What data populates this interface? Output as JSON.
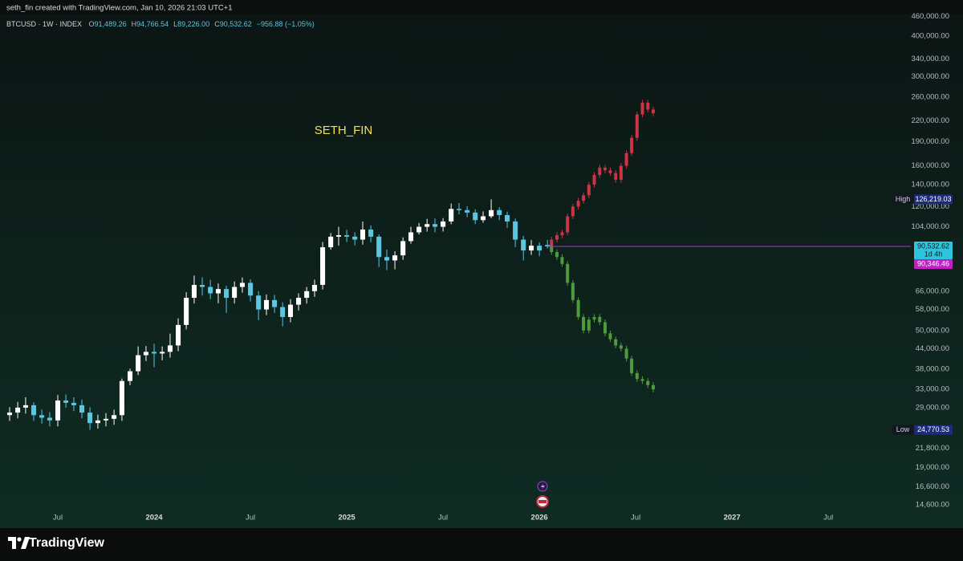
{
  "header": {
    "watermark_text": "seth_fin created with TradingView.com, Jan 10, 2026 21:03 UTC+1",
    "symbol": "BTCUSD · 1W · INDEX",
    "ohlc": [
      {
        "key": "O",
        "text": "91,489.26"
      },
      {
        "key": "H",
        "text": "94,766.54"
      },
      {
        "key": "L",
        "text": "89,226.00"
      },
      {
        "key": "C",
        "text": "90,532.62"
      }
    ],
    "change": "−956.88 (−1.05%)"
  },
  "footer": {
    "brand": "TradingView"
  },
  "chart_data": {
    "type": "candlestick",
    "log_scale": true,
    "grid": false,
    "annotation": "SETH_FIN",
    "annotation_color": "#f3e04e",
    "xlim": [
      2023.2,
      2027.92
    ],
    "xticks": [
      {
        "value": 2023.5,
        "label": "Jul"
      },
      2024,
      {
        "value": 2024.5,
        "label": "Jul"
      },
      2025,
      {
        "value": 2025.5,
        "label": "Jul"
      },
      2026,
      {
        "value": 2026.5,
        "label": "Jul"
      },
      2027,
      {
        "value": 2027.5,
        "label": "Jul"
      }
    ],
    "ylim": [
      12960,
      516000
    ],
    "yticks": [
      {
        "value": 460000,
        "label": "460,000.00"
      },
      {
        "value": 400000,
        "label": "400,000.00"
      },
      {
        "value": 340000,
        "label": "340,000.00"
      },
      {
        "value": 300000,
        "label": "300,000.00"
      },
      {
        "value": 260000,
        "label": "260,000.00"
      },
      {
        "value": 220000,
        "label": "220,000.00"
      },
      {
        "value": 190000,
        "label": "190,000.00"
      },
      {
        "value": 160000,
        "label": "160,000.00"
      },
      {
        "value": 140000,
        "label": "140,000.00"
      },
      {
        "value": 120000,
        "label": "120,000.00"
      },
      {
        "value": 104000,
        "label": "104,000.00"
      },
      {
        "value": 66000,
        "label": "66,000.00"
      },
      {
        "value": 58000,
        "label": "58,000.00"
      },
      {
        "value": 50000,
        "label": "50,000.00"
      },
      {
        "value": 44000,
        "label": "44,000.00"
      },
      {
        "value": 38000,
        "label": "38,000.00"
      },
      {
        "value": 33000,
        "label": "33,000.00"
      },
      {
        "value": 29000,
        "label": "29,000.00"
      },
      {
        "value": 21800,
        "label": "21,800.00"
      },
      {
        "value": 19000,
        "label": "19,000.00"
      },
      {
        "value": 16600,
        "label": "16,600.00"
      },
      {
        "value": 14600,
        "label": "14,600.00"
      }
    ],
    "series": [
      {
        "up_color": "#ffffff",
        "down_color": "#5cc6e0",
        "x": [
          2023.25,
          2023.292,
          2023.333,
          2023.375,
          2023.417,
          2023.458,
          2023.5,
          2023.542,
          2023.583,
          2023.625,
          2023.667,
          2023.708,
          2023.75,
          2023.792,
          2023.833,
          2023.875,
          2023.917,
          2023.958,
          2024,
          2024.042,
          2024.083,
          2024.125,
          2024.167,
          2024.208,
          2024.25,
          2024.292,
          2024.333,
          2024.375,
          2024.417,
          2024.458,
          2024.5,
          2024.542,
          2024.583,
          2024.625,
          2024.667,
          2024.708,
          2024.75,
          2024.792,
          2024.833,
          2024.875,
          2024.917,
          2024.958,
          2025,
          2025.042,
          2025.083,
          2025.125,
          2025.167,
          2025.208,
          2025.25,
          2025.292,
          2025.333,
          2025.375,
          2025.417,
          2025.458,
          2025.5,
          2025.542,
          2025.583,
          2025.625,
          2025.667,
          2025.708,
          2025.75,
          2025.792,
          2025.833,
          2025.875,
          2025.917,
          2025.958,
          2026,
          2026.042
        ],
        "open": [
          27500,
          28000,
          29000,
          29500,
          27500,
          27000,
          26500,
          30500,
          30000,
          29500,
          28000,
          26000,
          26500,
          26800,
          27500,
          35000,
          37500,
          42000,
          43000,
          42500,
          43000,
          45000,
          52000,
          63000,
          69000,
          68000,
          65000,
          67000,
          63000,
          68000,
          70000,
          64000,
          58000,
          62000,
          59000,
          55000,
          60000,
          63000,
          66000,
          69000,
          90000,
          97000,
          98000,
          97000,
          95000,
          102000,
          97000,
          84000,
          82000,
          85000,
          94000,
          100000,
          104000,
          106000,
          104000,
          108000,
          118000,
          117000,
          115000,
          109000,
          112000,
          117000,
          113000,
          108000,
          95000,
          88000,
          91000,
          91489.26
        ],
        "high": [
          29100,
          30200,
          31200,
          30100,
          28600,
          28100,
          31700,
          31800,
          31200,
          30700,
          29100,
          27600,
          27900,
          28600,
          35600,
          38200,
          44700,
          44800,
          45500,
          44700,
          48900,
          54500,
          65500,
          73700,
          72800,
          71500,
          69700,
          68600,
          70700,
          72700,
          71800,
          66000,
          64500,
          64300,
          61000,
          62400,
          65000,
          68000,
          71600,
          93400,
          99500,
          104000,
          101800,
          100000,
          108000,
          105000,
          98600,
          88500,
          87500,
          96500,
          104000,
          106800,
          110000,
          110300,
          110600,
          122600,
          123000,
          120300,
          117700,
          116000,
          126219,
          119500,
          115800,
          110200,
          97500,
          94700,
          93100,
          94766.54
        ],
        "low": [
          26400,
          26900,
          27800,
          26400,
          25900,
          25400,
          25400,
          29000,
          28300,
          26900,
          24800,
          25000,
          25400,
          25700,
          26400,
          34000,
          36500,
          40300,
          38600,
          40500,
          41300,
          43200,
          50400,
          60500,
          64000,
          62400,
          60600,
          56600,
          60500,
          65300,
          61400,
          53800,
          55700,
          56600,
          51500,
          53000,
          57600,
          60500,
          63400,
          66800,
          88500,
          91000,
          93300,
          91200,
          91700,
          93100,
          78300,
          76600,
          77000,
          82400,
          92300,
          98500,
          100500,
          100000,
          100600,
          105900,
          113500,
          111300,
          106000,
          107000,
          110500,
          109000,
          103300,
          90100,
          82000,
          85300,
          84500,
          89226
        ],
        "close": [
          28000,
          29000,
          29500,
          27500,
          27000,
          26500,
          30500,
          30000,
          29500,
          28000,
          26000,
          26500,
          26800,
          27500,
          35000,
          37500,
          42000,
          43000,
          42500,
          43000,
          45000,
          52000,
          63000,
          69000,
          68000,
          65000,
          67000,
          63000,
          68000,
          70000,
          64000,
          58000,
          62000,
          59000,
          55000,
          60000,
          63000,
          66000,
          69000,
          90000,
          97000,
          98000,
          97000,
          95000,
          102000,
          97000,
          84000,
          82000,
          85000,
          94000,
          100000,
          104000,
          106000,
          104000,
          108000,
          118000,
          117000,
          115000,
          109000,
          112000,
          117000,
          113000,
          108000,
          95000,
          88000,
          91000,
          88000,
          90532.62
        ]
      },
      {
        "color": "#cc3344",
        "x": [
          2026.063,
          2026.091,
          2026.118,
          2026.146,
          2026.174,
          2026.202,
          2026.229,
          2026.257,
          2026.285,
          2026.313,
          2026.341,
          2026.368,
          2026.396,
          2026.424,
          2026.452,
          2026.479,
          2026.507,
          2026.535,
          2026.563,
          2026.591
        ],
        "open": [
          90500,
          95000,
          98000,
          100000,
          112000,
          120000,
          125000,
          130000,
          140000,
          150000,
          158000,
          155000,
          152000,
          145000,
          160000,
          175000,
          195000,
          230000,
          250000,
          238000
        ],
        "high": [
          96900,
          100000,
          102000,
          114200,
          122400,
          127500,
          132600,
          142800,
          153000,
          161200,
          161200,
          158100,
          155000,
          163200,
          178500,
          198900,
          234600,
          255000,
          255000,
          242800
        ],
        "low": [
          88700,
          93100,
          96000,
          98000,
          109800,
          117600,
          122500,
          127400,
          137200,
          147000,
          151900,
          149000,
          142100,
          142100,
          156800,
          171500,
          191100,
          225400,
          233200,
          227400
        ],
        "close": [
          95000,
          98000,
          100000,
          112000,
          120000,
          125000,
          130000,
          140000,
          150000,
          158000,
          155000,
          152000,
          145000,
          160000,
          175000,
          195000,
          230000,
          250000,
          238000,
          232000
        ]
      },
      {
        "color": "#4f9a3c",
        "x": [
          2026.063,
          2026.091,
          2026.118,
          2026.146,
          2026.174,
          2026.202,
          2026.229,
          2026.257,
          2026.285,
          2026.313,
          2026.341,
          2026.368,
          2026.396,
          2026.424,
          2026.452,
          2026.479,
          2026.507,
          2026.535,
          2026.563,
          2026.591
        ],
        "open": [
          90500,
          87000,
          84000,
          80000,
          70000,
          62000,
          55000,
          50000,
          54000,
          55000,
          53000,
          49000,
          47000,
          45000,
          44000,
          41000,
          37000,
          35500,
          35000,
          34000
        ],
        "high": [
          92300,
          88700,
          85700,
          81600,
          71400,
          63200,
          56100,
          55100,
          56100,
          56100,
          54100,
          50000,
          47900,
          45900,
          44900,
          41800,
          37700,
          36200,
          35700,
          34700
        ],
        "low": [
          85300,
          82300,
          78400,
          68600,
          60800,
          53900,
          49000,
          49000,
          52900,
          51900,
          48000,
          46100,
          44100,
          43100,
          40200,
          36300,
          34800,
          34300,
          33300,
          32300
        ],
        "close": [
          87000,
          84000,
          80000,
          70000,
          62000,
          55000,
          50000,
          54000,
          55000,
          53000,
          49000,
          47000,
          45000,
          44000,
          41000,
          37000,
          35500,
          35000,
          34000,
          33000
        ]
      }
    ],
    "price_labels": [
      {
        "label": "High",
        "text": "126,219.03",
        "value": 126219.03,
        "color": "#1c2b7c"
      },
      {
        "text": "90,532.62",
        "sublabel": "1d 4h",
        "value": 90532.62,
        "color": "#2ec5dc"
      },
      {
        "text": "90,346.46",
        "value": 90346.46,
        "color": "#c21fc4"
      },
      {
        "label": "Low",
        "text": "24,770.53",
        "value": 24770.53,
        "color": "#1c2b7c"
      }
    ]
  }
}
